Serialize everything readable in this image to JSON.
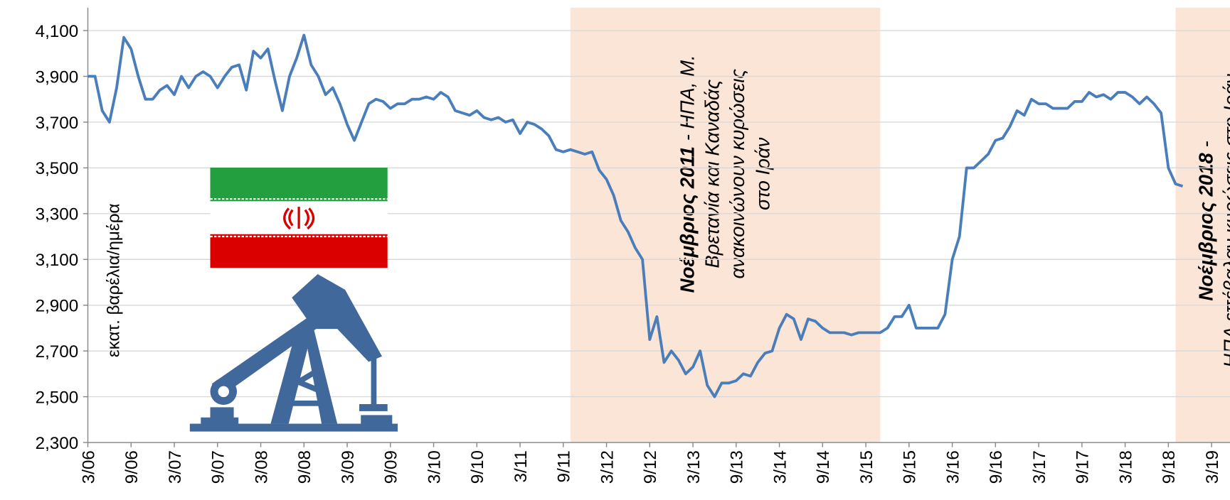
{
  "chart_data": {
    "type": "line",
    "y_label": "εκατ. βαρέλια/ημέρα",
    "color": "#4a7ebb",
    "grid": true,
    "xlim": [
      2006.167,
      2019.38
    ],
    "ylim": [
      2300,
      4200
    ],
    "yticks": [
      {
        "value": 2300,
        "label": "2,300"
      },
      {
        "value": 2500,
        "label": "2,500"
      },
      {
        "value": 2700,
        "label": "2,700"
      },
      {
        "value": 2900,
        "label": "2,900"
      },
      {
        "value": 3100,
        "label": "3,100"
      },
      {
        "value": 3300,
        "label": "3,300"
      },
      {
        "value": 3500,
        "label": "3,500"
      },
      {
        "value": 3700,
        "label": "3,700"
      },
      {
        "value": 3900,
        "label": "3,900"
      },
      {
        "value": 4100,
        "label": "4,100"
      }
    ],
    "xticks": [
      {
        "value": 2006.167,
        "label": "3/06"
      },
      {
        "value": 2006.667,
        "label": "9/06"
      },
      {
        "value": 2007.167,
        "label": "3/07"
      },
      {
        "value": 2007.667,
        "label": "9/07"
      },
      {
        "value": 2008.167,
        "label": "3/08"
      },
      {
        "value": 2008.667,
        "label": "9/08"
      },
      {
        "value": 2009.167,
        "label": "3/09"
      },
      {
        "value": 2009.667,
        "label": "9/09"
      },
      {
        "value": 2010.167,
        "label": "3/10"
      },
      {
        "value": 2010.667,
        "label": "9/10"
      },
      {
        "value": 2011.167,
        "label": "3/11"
      },
      {
        "value": 2011.667,
        "label": "9/11"
      },
      {
        "value": 2012.167,
        "label": "3/12"
      },
      {
        "value": 2012.667,
        "label": "9/12"
      },
      {
        "value": 2013.167,
        "label": "3/13"
      },
      {
        "value": 2013.667,
        "label": "9/13"
      },
      {
        "value": 2014.167,
        "label": "3/14"
      },
      {
        "value": 2014.667,
        "label": "9/14"
      },
      {
        "value": 2015.167,
        "label": "3/15"
      },
      {
        "value": 2015.667,
        "label": "9/15"
      },
      {
        "value": 2016.167,
        "label": "3/16"
      },
      {
        "value": 2016.667,
        "label": "9/16"
      },
      {
        "value": 2017.167,
        "label": "3/17"
      },
      {
        "value": 2017.667,
        "label": "9/17"
      },
      {
        "value": 2018.167,
        "label": "3/18"
      },
      {
        "value": 2018.667,
        "label": "9/18"
      },
      {
        "value": 2019.167,
        "label": "3/19"
      }
    ],
    "x": [
      2006.167,
      2006.25,
      2006.333,
      2006.417,
      2006.5,
      2006.583,
      2006.667,
      2006.75,
      2006.833,
      2006.917,
      2007,
      2007.083,
      2007.167,
      2007.25,
      2007.333,
      2007.417,
      2007.5,
      2007.583,
      2007.667,
      2007.75,
      2007.833,
      2007.917,
      2008,
      2008.083,
      2008.167,
      2008.25,
      2008.333,
      2008.417,
      2008.5,
      2008.583,
      2008.667,
      2008.75,
      2008.833,
      2008.917,
      2009,
      2009.083,
      2009.167,
      2009.25,
      2009.333,
      2009.417,
      2009.5,
      2009.583,
      2009.667,
      2009.75,
      2009.833,
      2009.917,
      2010,
      2010.083,
      2010.167,
      2010.25,
      2010.333,
      2010.417,
      2010.5,
      2010.583,
      2010.667,
      2010.75,
      2010.833,
      2010.917,
      2011,
      2011.083,
      2011.167,
      2011.25,
      2011.333,
      2011.417,
      2011.5,
      2011.583,
      2011.667,
      2011.75,
      2011.833,
      2011.917,
      2012,
      2012.083,
      2012.167,
      2012.25,
      2012.333,
      2012.417,
      2012.5,
      2012.583,
      2012.667,
      2012.75,
      2012.833,
      2012.917,
      2013,
      2013.083,
      2013.167,
      2013.25,
      2013.333,
      2013.417,
      2013.5,
      2013.583,
      2013.667,
      2013.75,
      2013.833,
      2013.917,
      2014,
      2014.083,
      2014.167,
      2014.25,
      2014.333,
      2014.417,
      2014.5,
      2014.583,
      2014.667,
      2014.75,
      2014.833,
      2014.917,
      2015,
      2015.083,
      2015.167,
      2015.25,
      2015.333,
      2015.417,
      2015.5,
      2015.583,
      2015.667,
      2015.75,
      2015.833,
      2015.917,
      2016,
      2016.083,
      2016.167,
      2016.25,
      2016.333,
      2016.417,
      2016.5,
      2016.583,
      2016.667,
      2016.75,
      2016.833,
      2016.917,
      2017,
      2017.083,
      2017.167,
      2017.25,
      2017.333,
      2017.417,
      2017.5,
      2017.583,
      2017.667,
      2017.75,
      2017.833,
      2017.917,
      2018,
      2018.083,
      2018.167,
      2018.25,
      2018.333,
      2018.417,
      2018.5,
      2018.583,
      2018.667,
      2018.75,
      2018.833
    ],
    "values": [
      3900,
      3900,
      3750,
      3700,
      3850,
      4070,
      4020,
      3900,
      3800,
      3800,
      3840,
      3860,
      3820,
      3900,
      3850,
      3900,
      3920,
      3900,
      3850,
      3900,
      3940,
      3950,
      3840,
      4010,
      3980,
      4020,
      3880,
      3750,
      3900,
      3980,
      4080,
      3950,
      3900,
      3820,
      3850,
      3780,
      3690,
      3620,
      3700,
      3780,
      3800,
      3790,
      3760,
      3780,
      3780,
      3800,
      3800,
      3810,
      3800,
      3830,
      3810,
      3750,
      3740,
      3730,
      3750,
      3720,
      3710,
      3720,
      3700,
      3710,
      3650,
      3700,
      3690,
      3670,
      3640,
      3580,
      3570,
      3580,
      3570,
      3560,
      3570,
      3490,
      3450,
      3380,
      3270,
      3220,
      3150,
      3100,
      2750,
      2850,
      2650,
      2700,
      2660,
      2600,
      2630,
      2700,
      2550,
      2500,
      2560,
      2560,
      2570,
      2600,
      2590,
      2650,
      2690,
      2700,
      2800,
      2860,
      2840,
      2750,
      2840,
      2830,
      2800,
      2780,
      2780,
      2780,
      2770,
      2780,
      2780,
      2780,
      2780,
      2800,
      2850,
      2850,
      2900,
      2800,
      2800,
      2800,
      2800,
      2860,
      3100,
      3200,
      3500,
      3500,
      3530,
      3560,
      3620,
      3630,
      3680,
      3750,
      3730,
      3800,
      3780,
      3780,
      3760,
      3760,
      3760,
      3790,
      3790,
      3830,
      3810,
      3820,
      3800,
      3830,
      3830,
      3810,
      3780,
      3810,
      3780,
      3740,
      3500,
      3430,
      3420
    ],
    "spans": [
      {
        "x0": 2011.75,
        "x1": 2015.333,
        "color": "#fbe5d6",
        "heading": "Νοέμβριος 2011",
        "lines": [
          "- ΗΠΑ, Μ.",
          "Βρετανία και Καναδάς",
          "ανακοινώνουν κυρώσεις",
          "στο Ιράν"
        ]
      },
      {
        "x0": 2018.75,
        "color": "#fbe5d6",
        "heading": "Νοέμβριος 2018",
        "lines": [
          "-",
          "ΗΠΑ επέβαλαν κυρώσεις στο Ιράν"
        ]
      }
    ]
  }
}
